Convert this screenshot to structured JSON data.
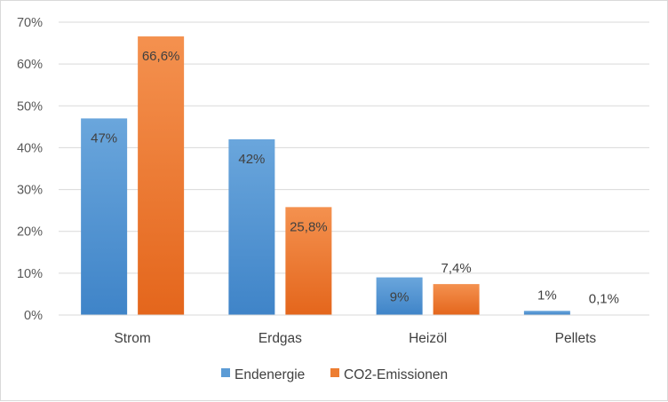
{
  "chart_data": {
    "type": "bar",
    "categories": [
      "Strom",
      "Erdgas",
      "Heizöl",
      "Pellets"
    ],
    "series": [
      {
        "name": "Endenergie",
        "values": [
          47,
          42,
          9,
          1
        ],
        "labels": [
          "47%",
          "42%",
          "9%",
          "1%"
        ],
        "color": "#5b9bd5"
      },
      {
        "name": "CO2-Emissionen",
        "values": [
          66.6,
          25.8,
          7.4,
          0.1
        ],
        "labels": [
          "66,6%",
          "25,8%",
          "7,4%",
          "0,1%"
        ],
        "color": "#ed7d31"
      }
    ],
    "yticks": [
      "0%",
      "10%",
      "20%",
      "30%",
      "40%",
      "50%",
      "60%",
      "70%"
    ],
    "ylim": [
      0,
      70
    ],
    "grid": true,
    "legend": "bottom"
  }
}
